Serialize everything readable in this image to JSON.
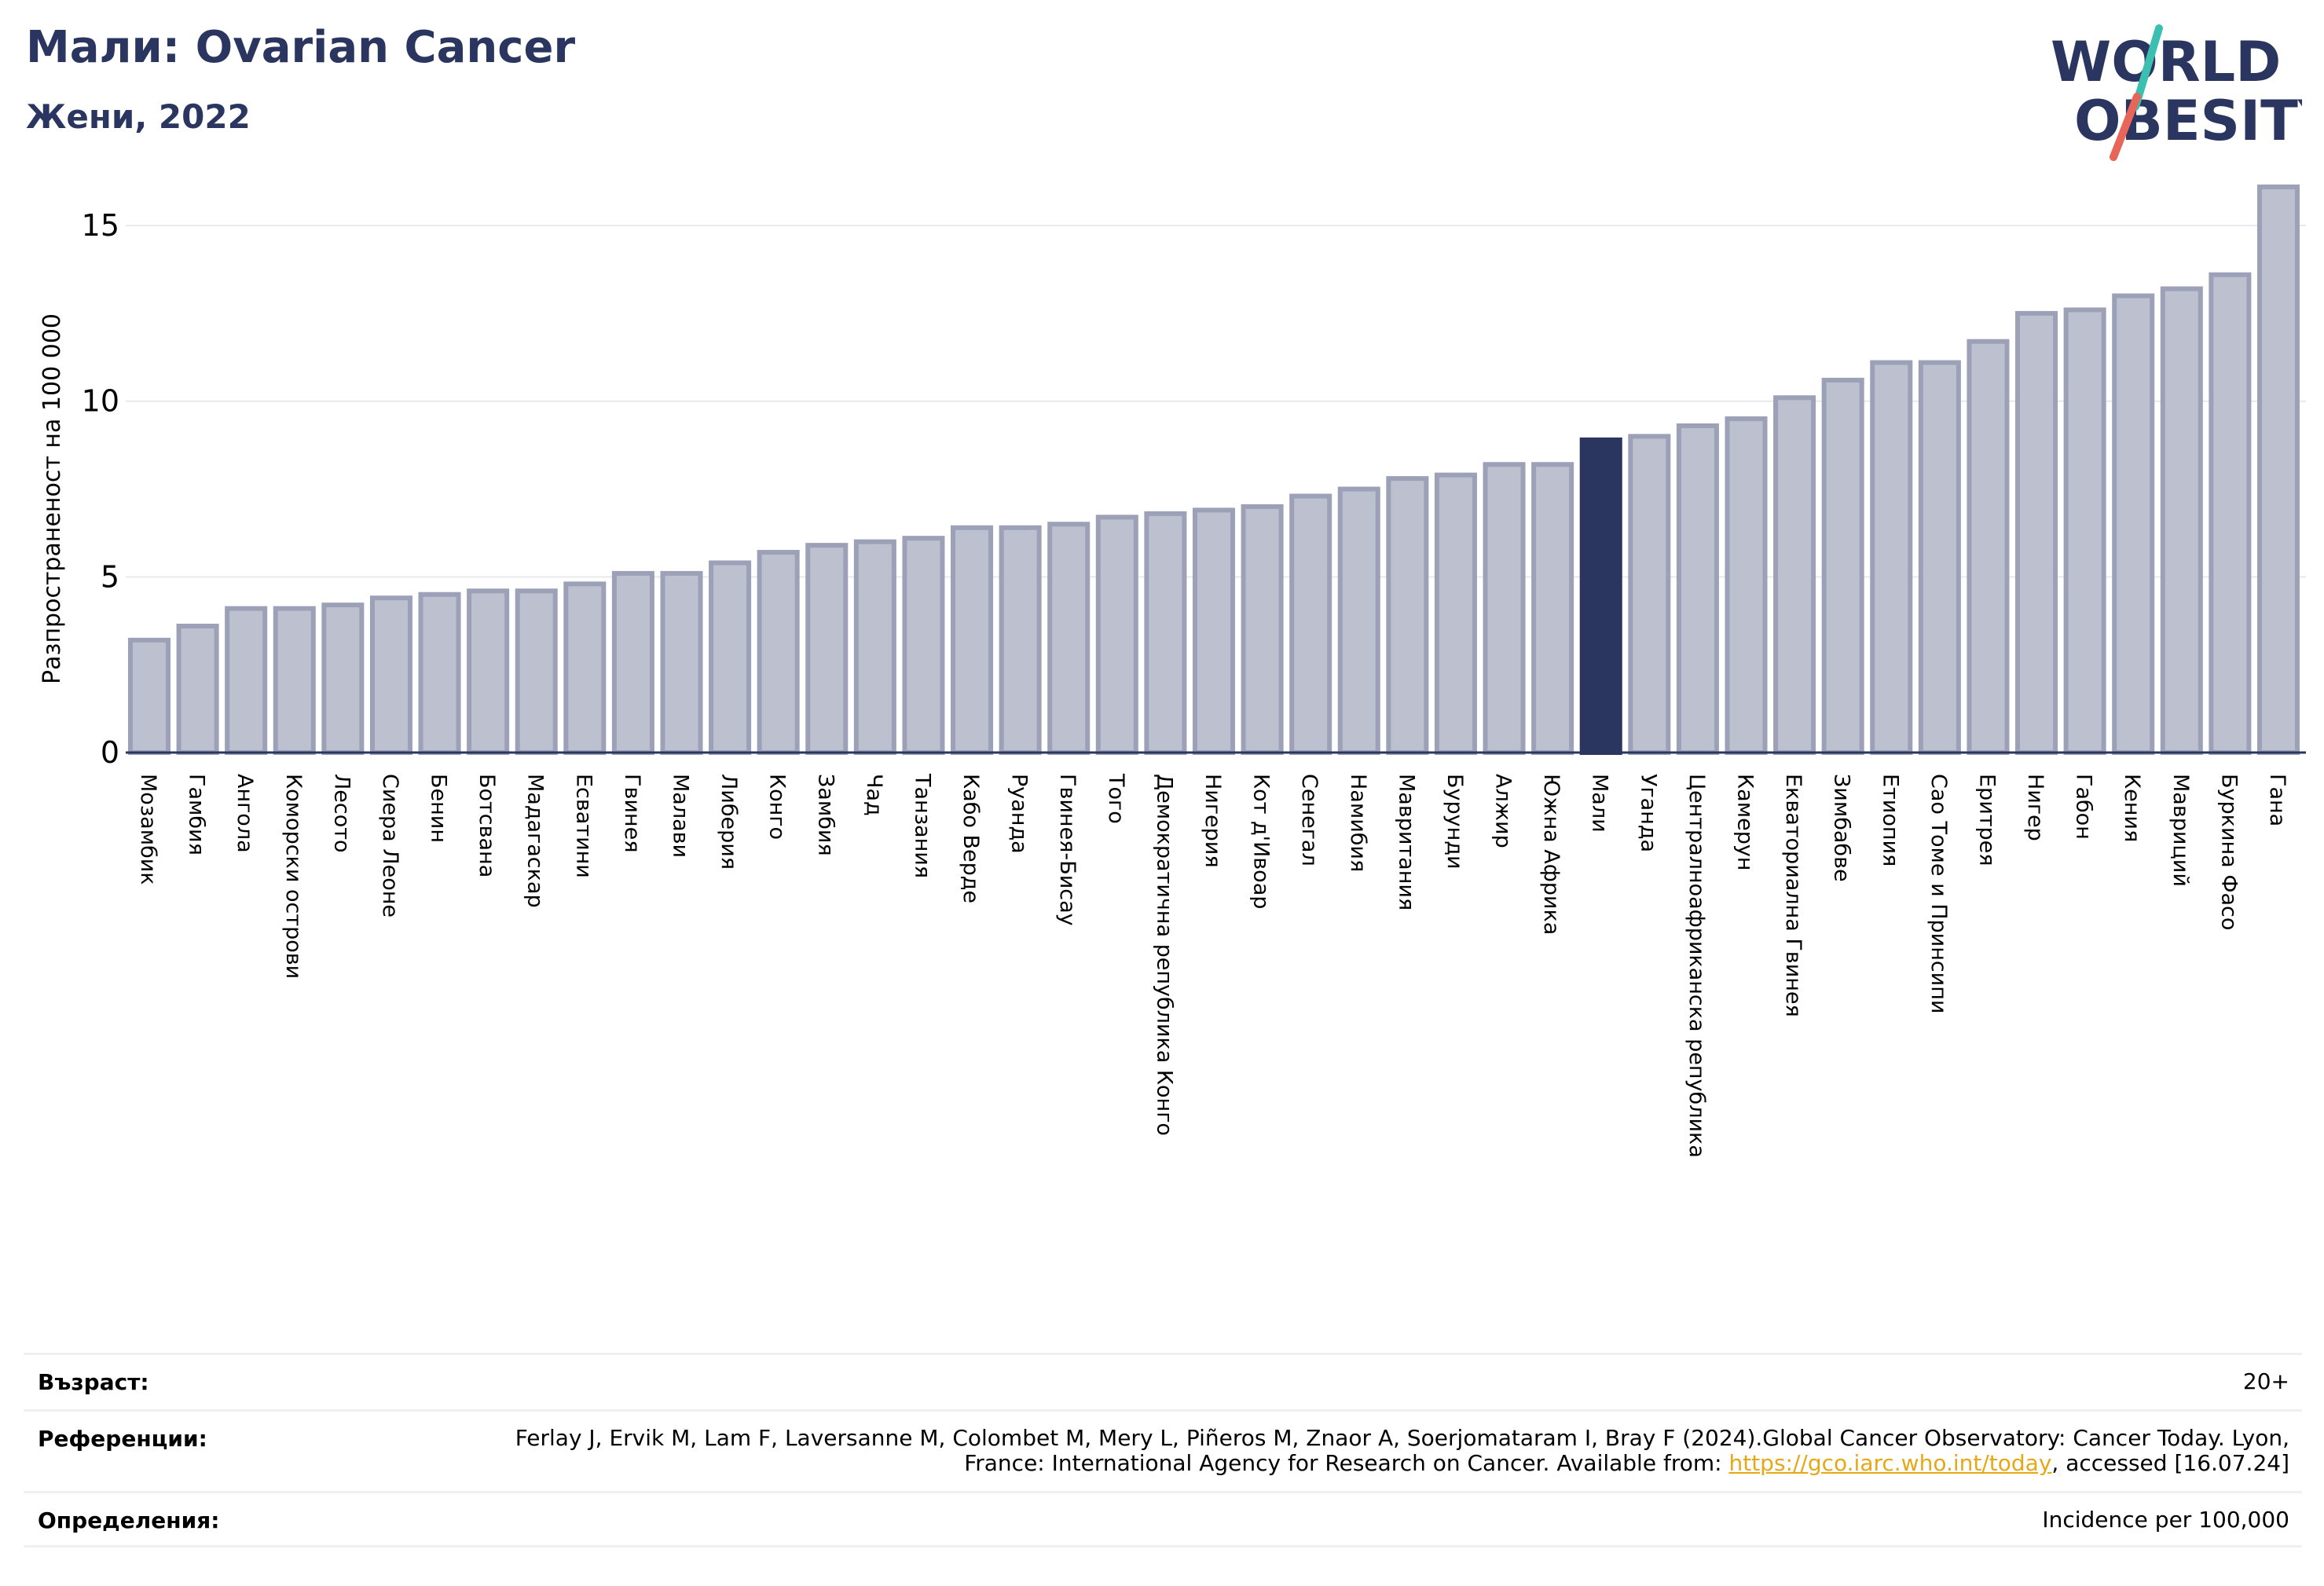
{
  "header": {
    "title": "Мали: Ovarian Cancer",
    "subtitle": "Жени, 2022"
  },
  "logo": {
    "line1": "WORLD",
    "line2": "OBESITY",
    "colors": {
      "text": "#2a3560",
      "slash_teal": "#3bbfb0",
      "slash_red": "#e8655a"
    }
  },
  "chart_data": {
    "type": "bar",
    "ylabel": "Разпространеност  на 100 000",
    "ylim": [
      0,
      16.5
    ],
    "yticks": [
      0,
      5,
      10,
      15
    ],
    "grid": true,
    "highlight": "Мали",
    "colors": {
      "bar": "#bcc0cf",
      "bar_edge": "#9ca1b8",
      "highlight": "#2a3560"
    },
    "categories": [
      "Мозамбик",
      "Гамбия",
      "Ангола",
      "Коморски острови",
      "Лесото",
      "Сиера Леоне",
      "Бенин",
      "Ботсвана",
      "Мадагаскар",
      "Есватини",
      "Гвинея",
      "Малави",
      "Либерия",
      "Конго",
      "Замбия",
      "Чад",
      "Танзания",
      "Кабо Верде",
      "Руанда",
      "Гвинея-Бисау",
      "Того",
      "Демократична република Конго",
      "Нигерия",
      "Кот д'Ивоар",
      "Сенегал",
      "Намибия",
      "Мавритания",
      "Бурунди",
      "Алжир",
      "Южна Африка",
      "Мали",
      "Уганда",
      "Централноафриканска република",
      "Камерун",
      "Екваториална Гвинея",
      "Зимбабве",
      "Етиопия",
      "Сао Томе и Принсипи",
      "Еритрея",
      "Нигер",
      "Габон",
      "Кения",
      "Мавриций",
      "Буркина Фасо",
      "Гана"
    ],
    "values": [
      3.2,
      3.6,
      4.1,
      4.1,
      4.2,
      4.4,
      4.5,
      4.6,
      4.6,
      4.8,
      5.1,
      5.1,
      5.4,
      5.7,
      5.9,
      6.0,
      6.1,
      6.4,
      6.4,
      6.5,
      6.7,
      6.8,
      6.9,
      7.0,
      7.3,
      7.5,
      7.8,
      7.9,
      8.2,
      8.2,
      8.9,
      9.0,
      9.3,
      9.5,
      10.1,
      10.6,
      11.1,
      11.1,
      11.7,
      12.5,
      12.6,
      13.0,
      13.2,
      13.6,
      16.1
    ]
  },
  "info": {
    "age_label": "Възраст:",
    "age_value": "20+",
    "references_label": "Референции:",
    "references_text": "Ferlay J, Ervik M, Lam F, Laversanne M, Colombet M, Mery L, Piñeros M, Znaor A, Soerjomataram I, Bray F (2024).Global Cancer Observatory: Cancer Today. Lyon, France: International Agency for Research on Cancer. Available from: ",
    "references_link": "https://gco.iarc.who.int/today",
    "references_suffix": ", accessed [16.07.24]",
    "definitions_label": "Определения:",
    "definitions_value": "Incidence per 100,000"
  }
}
